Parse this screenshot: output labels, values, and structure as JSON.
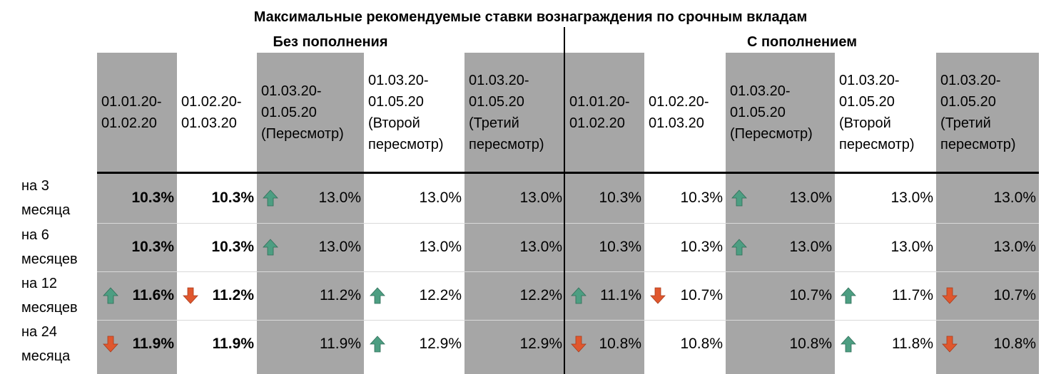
{
  "chart_data": {
    "type": "table",
    "title": "Максимальные рекомендуемые ставки вознаграждения по срочным вкладам",
    "groups": [
      {
        "name": "Без пополнения",
        "columns": [
          {
            "header": [
              "01.01.20-",
              "01.02.20"
            ],
            "shaded": true
          },
          {
            "header": [
              "01.02.20-",
              "01.03.20"
            ],
            "shaded": false
          },
          {
            "header": [
              "01.03.20-",
              "01.05.20",
              "(Пересмотр)"
            ],
            "shaded": true
          },
          {
            "header": [
              "01.03.20-",
              "01.05.20",
              "(Второй",
              "пересмотр)"
            ],
            "shaded": false
          },
          {
            "header": [
              "01.03.20-",
              "01.05.20",
              "(Третий",
              "пересмотр)"
            ],
            "shaded": true
          }
        ]
      },
      {
        "name": "С пополнением",
        "columns": [
          {
            "header": [
              "01.01.20-",
              "01.02.20"
            ],
            "shaded": true
          },
          {
            "header": [
              "01.02.20-",
              "01.03.20"
            ],
            "shaded": false
          },
          {
            "header": [
              "01.03.20-",
              "01.05.20",
              "(Пересмотр)"
            ],
            "shaded": true
          },
          {
            "header": [
              "01.03.20-",
              "01.05.20",
              "(Второй",
              "пересмотр)"
            ],
            "shaded": false
          },
          {
            "header": [
              "01.03.20-",
              "01.05.20",
              "(Третий",
              "пересмотр)"
            ],
            "shaded": true
          }
        ]
      }
    ],
    "rows": [
      {
        "label": [
          "на 3",
          "месяца"
        ],
        "cells": [
          {
            "value": "10.3%",
            "bold": true,
            "arrow": null
          },
          {
            "value": "10.3%",
            "bold": true,
            "arrow": null
          },
          {
            "value": "13.0%",
            "bold": false,
            "arrow": "up"
          },
          {
            "value": "13.0%",
            "bold": false,
            "arrow": null
          },
          {
            "value": "13.0%",
            "bold": false,
            "arrow": null
          },
          {
            "value": "10.3%",
            "bold": false,
            "arrow": null
          },
          {
            "value": "10.3%",
            "bold": false,
            "arrow": null
          },
          {
            "value": "13.0%",
            "bold": false,
            "arrow": "up"
          },
          {
            "value": "13.0%",
            "bold": false,
            "arrow": null
          },
          {
            "value": "13.0%",
            "bold": false,
            "arrow": null
          }
        ]
      },
      {
        "label": [
          "на 6",
          "месяцев"
        ],
        "cells": [
          {
            "value": "10.3%",
            "bold": true,
            "arrow": null
          },
          {
            "value": "10.3%",
            "bold": true,
            "arrow": null
          },
          {
            "value": "13.0%",
            "bold": false,
            "arrow": "up"
          },
          {
            "value": "13.0%",
            "bold": false,
            "arrow": null
          },
          {
            "value": "13.0%",
            "bold": false,
            "arrow": null
          },
          {
            "value": "10.3%",
            "bold": false,
            "arrow": null
          },
          {
            "value": "10.3%",
            "bold": false,
            "arrow": null
          },
          {
            "value": "13.0%",
            "bold": false,
            "arrow": "up"
          },
          {
            "value": "13.0%",
            "bold": false,
            "arrow": null
          },
          {
            "value": "13.0%",
            "bold": false,
            "arrow": null
          }
        ]
      },
      {
        "label": [
          "на 12",
          "месяцев"
        ],
        "cells": [
          {
            "value": "11.6%",
            "bold": true,
            "arrow": "up"
          },
          {
            "value": "11.2%",
            "bold": true,
            "arrow": "down"
          },
          {
            "value": "11.2%",
            "bold": false,
            "arrow": null
          },
          {
            "value": "12.2%",
            "bold": false,
            "arrow": "up"
          },
          {
            "value": "12.2%",
            "bold": false,
            "arrow": null
          },
          {
            "value": "11.1%",
            "bold": false,
            "arrow": "up"
          },
          {
            "value": "10.7%",
            "bold": false,
            "arrow": "down"
          },
          {
            "value": "10.7%",
            "bold": false,
            "arrow": null
          },
          {
            "value": "11.7%",
            "bold": false,
            "arrow": "up"
          },
          {
            "value": "10.7%",
            "bold": false,
            "arrow": "down"
          }
        ]
      },
      {
        "label": [
          "на 24",
          "месяца"
        ],
        "cells": [
          {
            "value": "11.9%",
            "bold": true,
            "arrow": "down"
          },
          {
            "value": "11.9%",
            "bold": true,
            "arrow": null
          },
          {
            "value": "11.9%",
            "bold": false,
            "arrow": null
          },
          {
            "value": "12.9%",
            "bold": false,
            "arrow": "up"
          },
          {
            "value": "12.9%",
            "bold": false,
            "arrow": null
          },
          {
            "value": "10.8%",
            "bold": false,
            "arrow": "down"
          },
          {
            "value": "10.8%",
            "bold": false,
            "arrow": null
          },
          {
            "value": "10.8%",
            "bold": false,
            "arrow": null
          },
          {
            "value": "11.8%",
            "bold": false,
            "arrow": "up"
          },
          {
            "value": "10.8%",
            "bold": false,
            "arrow": "down"
          }
        ]
      }
    ],
    "colors": {
      "shaded": "#a6a6a6",
      "up_arrow": "#4d9e82",
      "down_arrow": "#e0572e"
    }
  }
}
